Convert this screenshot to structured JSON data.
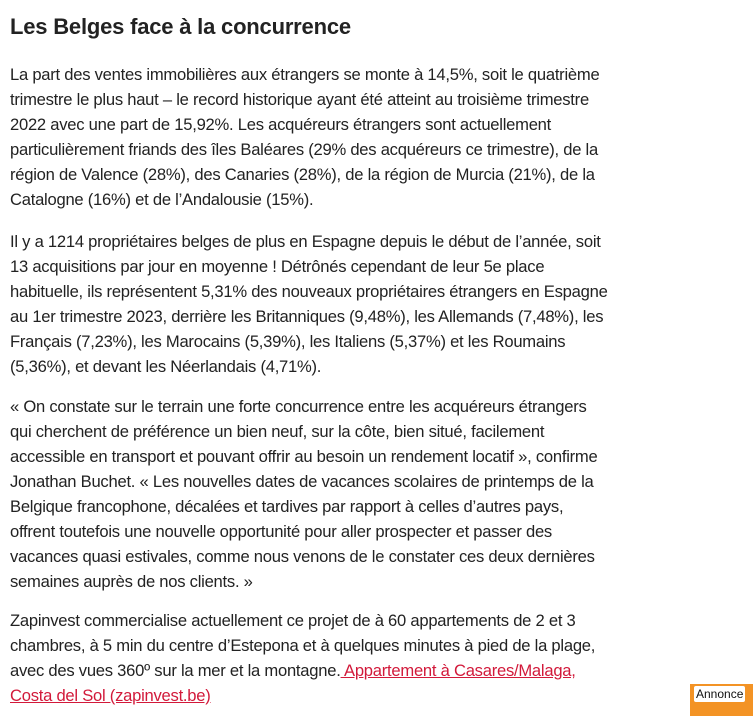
{
  "title": "Les Belges face à la concurrence",
  "paragraphs": [
    [
      "La part des ventes immobilières aux étrangers se monte à 14,5%, soit le quatrième",
      "trimestre le plus haut – le record historique ayant été atteint au troisième trimestre",
      "2022 avec une part de 15,92%. Les acquéreurs étrangers sont actuellement",
      "particulièrement friands des îles Baléares (29% des acquéreurs ce trimestre), de la",
      "région de Valence (28%), des Canaries (28%), de la région de Murcia (21%), de la",
      "Catalogne (16%) et de l’Andalousie (15%)."
    ],
    [
      "Il y a 1214 propriétaires belges de plus en Espagne depuis le début de l’année, soit",
      "13 acquisitions par jour en moyenne ! Détrônés cependant de leur 5e place",
      "habituelle, ils représentent 5,31% des nouveaux propriétaires étrangers en Espagne",
      "au 1er trimestre 2023, derrière les Britanniques (9,48%), les Allemands (7,48%), les",
      "Français (7,23%), les Marocains (5,39%), les Italiens (5,37%) et les Roumains",
      "(5,36%), et devant les Néerlandais (4,71%)."
    ],
    [
      "« On constate sur le terrain une forte concurrence entre les acquéreurs étrangers",
      "qui cherchent de préférence un bien neuf, sur la côte, bien situé, facilement",
      "accessible en transport et pouvant offrir au besoin un rendement locatif », confirme",
      "Jonathan Buchet. « Les nouvelles dates de vacances scolaires de printemps de la",
      "Belgique francophone, décalées et tardives par rapport à celles d’autres pays,",
      "offrent toutefois une nouvelle opportunité pour aller prospecter et passer des",
      "vacances quasi estivales, comme nous venons de le constater ces deux dernières",
      "semaines auprès de nos clients. »"
    ],
    [
      "Zapinvest commercialise actuellement ce projet de à 60 appartements de 2 et 3",
      "chambres, à 5 min du centre d’Estepona et à quelques minutes à pied de la plage,",
      "avec des vues 360º sur la mer et la montagne."
    ]
  ],
  "link": {
    "line1": " Appartement à Casares/Malaga,",
    "line2": "Costa del Sol (zapinvest.be)",
    "color": "#d2193a"
  },
  "ad": {
    "label": "Annonce",
    "color": "#f39325"
  }
}
